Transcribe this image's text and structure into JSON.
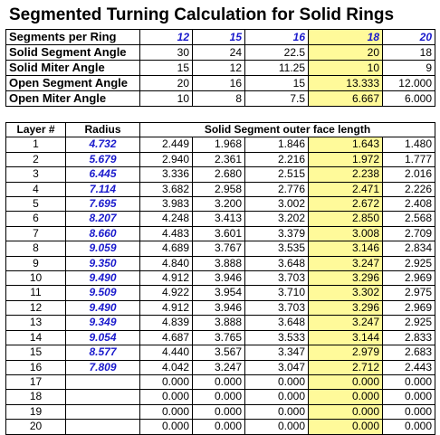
{
  "title": "Segmented Turning Calculation for Solid Rings",
  "summary": {
    "header_label": "Segments per Ring",
    "segments": [
      "12",
      "15",
      "16",
      "18",
      "20"
    ],
    "highlight_index": 3,
    "rows": [
      {
        "label": "Solid Segment Angle",
        "values": [
          "30",
          "24",
          "22.5",
          "20",
          "18"
        ]
      },
      {
        "label": "Solid Miter Angle",
        "values": [
          "15",
          "12",
          "11.25",
          "10",
          "9"
        ]
      },
      {
        "label": "Open Segment Angle",
        "values": [
          "20",
          "16",
          "15",
          "13.333",
          "12.000"
        ]
      },
      {
        "label": "Open Miter Angle",
        "values": [
          "10",
          "8",
          "7.5",
          "6.667",
          "6.000"
        ]
      }
    ]
  },
  "layers": {
    "headers": {
      "layer": "Layer #",
      "radius": "Radius",
      "lengths": "Solid Segment outer face length"
    },
    "rows": [
      {
        "layer": "1",
        "radius": "4.732",
        "values": [
          "2.449",
          "1.968",
          "1.846",
          "1.643",
          "1.480"
        ]
      },
      {
        "layer": "2",
        "radius": "5.679",
        "values": [
          "2.940",
          "2.361",
          "2.216",
          "1.972",
          "1.777"
        ]
      },
      {
        "layer": "3",
        "radius": "6.445",
        "values": [
          "3.336",
          "2.680",
          "2.515",
          "2.238",
          "2.016"
        ]
      },
      {
        "layer": "4",
        "radius": "7.114",
        "values": [
          "3.682",
          "2.958",
          "2.776",
          "2.471",
          "2.226"
        ]
      },
      {
        "layer": "5",
        "radius": "7.695",
        "values": [
          "3.983",
          "3.200",
          "3.002",
          "2.672",
          "2.408"
        ]
      },
      {
        "layer": "6",
        "radius": "8.207",
        "values": [
          "4.248",
          "3.413",
          "3.202",
          "2.850",
          "2.568"
        ]
      },
      {
        "layer": "7",
        "radius": "8.660",
        "values": [
          "4.483",
          "3.601",
          "3.379",
          "3.008",
          "2.709"
        ]
      },
      {
        "layer": "8",
        "radius": "9.059",
        "values": [
          "4.689",
          "3.767",
          "3.535",
          "3.146",
          "2.834"
        ]
      },
      {
        "layer": "9",
        "radius": "9.350",
        "values": [
          "4.840",
          "3.888",
          "3.648",
          "3.247",
          "2.925"
        ]
      },
      {
        "layer": "10",
        "radius": "9.490",
        "values": [
          "4.912",
          "3.946",
          "3.703",
          "3.296",
          "2.969"
        ]
      },
      {
        "layer": "11",
        "radius": "9.509",
        "values": [
          "4.922",
          "3.954",
          "3.710",
          "3.302",
          "2.975"
        ]
      },
      {
        "layer": "12",
        "radius": "9.490",
        "values": [
          "4.912",
          "3.946",
          "3.703",
          "3.296",
          "2.969"
        ]
      },
      {
        "layer": "13",
        "radius": "9.349",
        "values": [
          "4.839",
          "3.888",
          "3.648",
          "3.247",
          "2.925"
        ]
      },
      {
        "layer": "14",
        "radius": "9.054",
        "values": [
          "4.687",
          "3.765",
          "3.533",
          "3.144",
          "2.833"
        ]
      },
      {
        "layer": "15",
        "radius": "8.577",
        "values": [
          "4.440",
          "3.567",
          "3.347",
          "2.979",
          "2.683"
        ]
      },
      {
        "layer": "16",
        "radius": "7.809",
        "values": [
          "4.042",
          "3.247",
          "3.047",
          "2.712",
          "2.443"
        ]
      },
      {
        "layer": "17",
        "radius": "",
        "values": [
          "0.000",
          "0.000",
          "0.000",
          "0.000",
          "0.000"
        ]
      },
      {
        "layer": "18",
        "radius": "",
        "values": [
          "0.000",
          "0.000",
          "0.000",
          "0.000",
          "0.000"
        ]
      },
      {
        "layer": "19",
        "radius": "",
        "values": [
          "0.000",
          "0.000",
          "0.000",
          "0.000",
          "0.000"
        ]
      },
      {
        "layer": "20",
        "radius": "",
        "values": [
          "0.000",
          "0.000",
          "0.000",
          "0.000",
          "0.000"
        ]
      }
    ]
  },
  "colors": {
    "accent_text": "#1a1acc",
    "highlight": "#fffa9a"
  }
}
